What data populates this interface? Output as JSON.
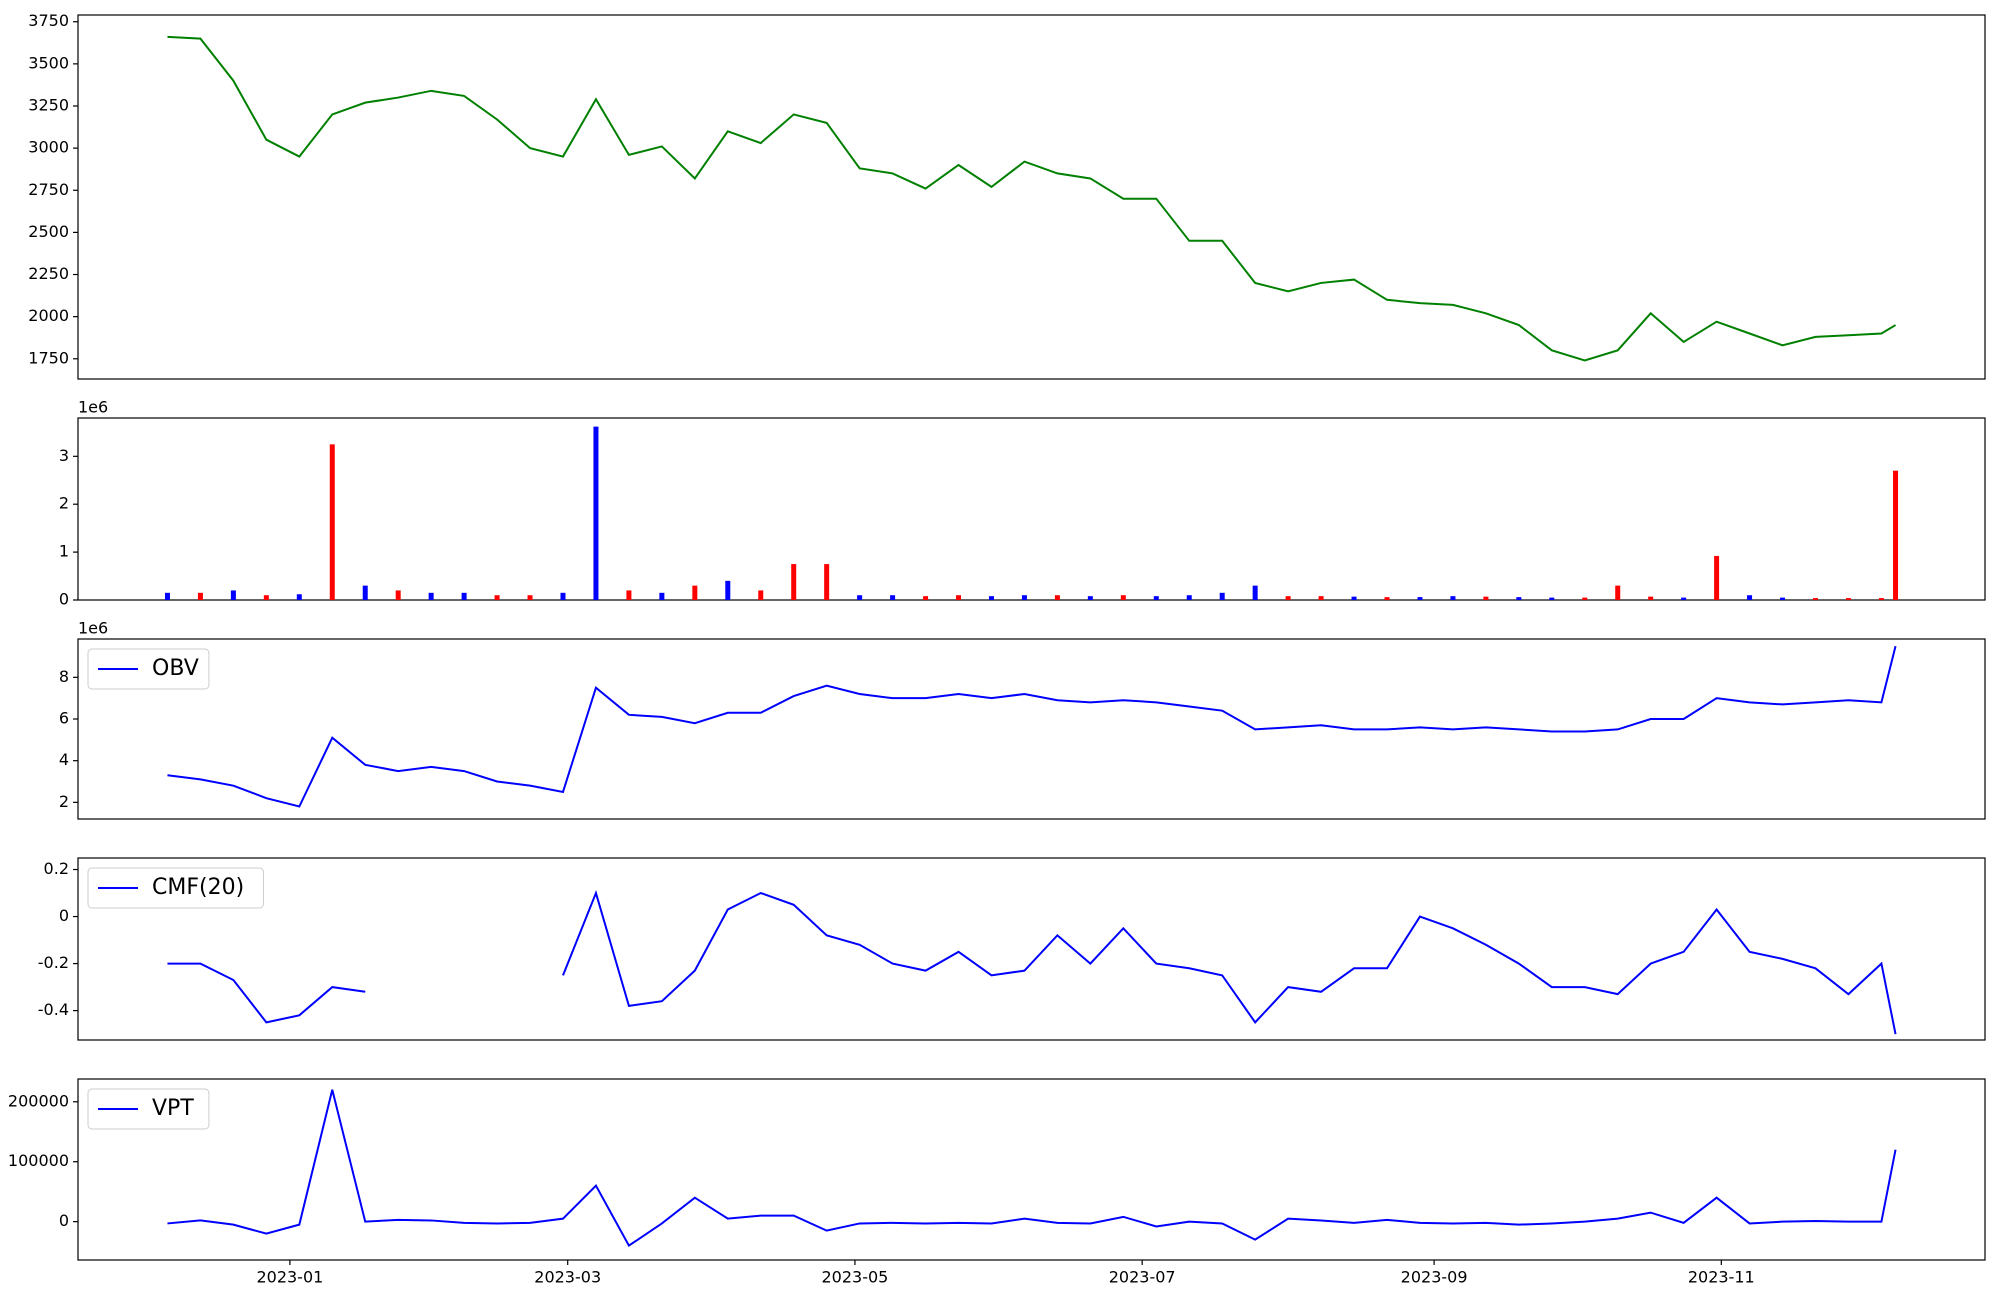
{
  "chart_data": [
    {
      "type": "line",
      "color": "#008000",
      "x": [
        "2022-12-06",
        "2022-12-13",
        "2022-12-20",
        "2022-12-27",
        "2023-01-03",
        "2023-01-10",
        "2023-01-17",
        "2023-01-24",
        "2023-01-31",
        "2023-02-07",
        "2023-02-14",
        "2023-02-21",
        "2023-02-28",
        "2023-03-07",
        "2023-03-14",
        "2023-03-21",
        "2023-03-28",
        "2023-04-04",
        "2023-04-11",
        "2023-04-18",
        "2023-04-25",
        "2023-05-02",
        "2023-05-09",
        "2023-05-16",
        "2023-05-23",
        "2023-05-30",
        "2023-06-06",
        "2023-06-13",
        "2023-06-20",
        "2023-06-27",
        "2023-07-04",
        "2023-07-11",
        "2023-07-18",
        "2023-07-25",
        "2023-08-01",
        "2023-08-08",
        "2023-08-15",
        "2023-08-22",
        "2023-08-29",
        "2023-09-05",
        "2023-09-12",
        "2023-09-19",
        "2023-09-26",
        "2023-10-03",
        "2023-10-10",
        "2023-10-17",
        "2023-10-24",
        "2023-10-31",
        "2023-11-07",
        "2023-11-14",
        "2023-11-21",
        "2023-11-28",
        "2023-12-05",
        "2023-12-08"
      ],
      "xlim": [
        "2022-11-17",
        "2023-12-27"
      ],
      "values": [
        3660,
        3650,
        3400,
        3050,
        2950,
        3200,
        3270,
        3300,
        3340,
        3310,
        3170,
        3000,
        2950,
        3290,
        2960,
        3010,
        2820,
        3100,
        3030,
        3200,
        3150,
        2880,
        2850,
        2760,
        2900,
        2770,
        2920,
        2850,
        2820,
        2700,
        2700,
        2450,
        2450,
        2200,
        2150,
        2200,
        2220,
        2100,
        2080,
        2070,
        2020,
        1950,
        1800,
        1740,
        1800,
        2020,
        1850,
        1970,
        1900,
        1830,
        1880,
        1890,
        1900,
        1950
      ],
      "ylim": [
        1630,
        3790
      ],
      "yticks": [
        1750,
        2000,
        2250,
        2500,
        2750,
        3000,
        3250,
        3500,
        3750
      ]
    },
    {
      "type": "bar",
      "y_scale_label": "1e6",
      "values": [
        0.15,
        0.15,
        0.2,
        0.1,
        0.12,
        3.25,
        0.3,
        0.2,
        0.15,
        0.15,
        0.1,
        0.1,
        0.15,
        3.62,
        0.2,
        0.15,
        0.3,
        0.4,
        0.2,
        0.75,
        0.75,
        0.1,
        0.1,
        0.08,
        0.1,
        0.08,
        0.1,
        0.1,
        0.08,
        0.1,
        0.08,
        0.1,
        0.15,
        0.3,
        0.08,
        0.08,
        0.07,
        0.06,
        0.06,
        0.08,
        0.07,
        0.06,
        0.05,
        0.05,
        0.3,
        0.07,
        0.05,
        0.92,
        0.1,
        0.05,
        0.04,
        0.04,
        0.04,
        2.7
      ],
      "colors": [
        "#0000ff",
        "#ff0000",
        "#0000ff",
        "#ff0000",
        "#0000ff",
        "#ff0000",
        "#0000ff",
        "#ff0000",
        "#0000ff",
        "#0000ff",
        "#ff0000",
        "#ff0000",
        "#0000ff",
        "#0000ff",
        "#ff0000",
        "#0000ff",
        "#ff0000",
        "#0000ff",
        "#ff0000",
        "#ff0000",
        "#ff0000",
        "#0000ff",
        "#0000ff",
        "#ff0000",
        "#ff0000",
        "#0000ff",
        "#0000ff",
        "#ff0000",
        "#0000ff",
        "#ff0000",
        "#0000ff",
        "#0000ff",
        "#0000ff",
        "#0000ff",
        "#ff0000",
        "#ff0000",
        "#0000ff",
        "#ff0000",
        "#0000ff",
        "#0000ff",
        "#ff0000",
        "#0000ff",
        "#0000ff",
        "#ff0000",
        "#ff0000",
        "#ff0000",
        "#0000ff",
        "#ff0000",
        "#0000ff",
        "#0000ff",
        "#ff0000",
        "#ff0000",
        "#ff0000",
        "#ff0000"
      ],
      "ylim": [
        0,
        3.8
      ],
      "yticks": [
        0,
        1,
        2,
        3
      ]
    },
    {
      "type": "line",
      "y_scale_label": "1e6",
      "legend": "upper left",
      "series": [
        {
          "name": "OBV",
          "color": "#0000ff",
          "values": [
            3.3,
            3.1,
            2.8,
            2.2,
            1.8,
            5.1,
            3.8,
            3.5,
            3.7,
            3.5,
            3.0,
            2.8,
            2.5,
            7.5,
            6.2,
            6.1,
            5.8,
            6.3,
            6.3,
            7.1,
            7.6,
            7.2,
            7.0,
            7.0,
            7.2,
            7.0,
            7.2,
            6.9,
            6.8,
            6.9,
            6.8,
            6.6,
            6.4,
            5.5,
            5.6,
            5.7,
            5.5,
            5.5,
            5.6,
            5.5,
            5.6,
            5.5,
            5.4,
            5.4,
            5.5,
            6.0,
            6.0,
            7.0,
            6.8,
            6.7,
            6.8,
            6.9,
            6.8,
            9.5
          ]
        }
      ],
      "ylim": [
        1.2,
        9.84
      ],
      "yticks": [
        2,
        4,
        6,
        8
      ]
    },
    {
      "type": "line",
      "legend": "upper left",
      "series": [
        {
          "name": "CMF(20)",
          "color": "#0000ff",
          "values": [
            -0.2,
            -0.2,
            -0.27,
            -0.45,
            -0.42,
            -0.3,
            -0.32,
            null,
            null,
            null,
            null,
            null,
            -0.25,
            0.1,
            -0.38,
            -0.36,
            -0.23,
            0.03,
            0.1,
            0.05,
            -0.08,
            -0.12,
            -0.2,
            -0.23,
            -0.15,
            -0.25,
            -0.23,
            -0.08,
            -0.2,
            -0.05,
            -0.2,
            -0.22,
            -0.25,
            -0.45,
            -0.3,
            -0.32,
            -0.22,
            -0.22,
            0.0,
            -0.05,
            -0.12,
            -0.2,
            -0.3,
            -0.3,
            -0.33,
            -0.2,
            -0.15,
            0.03,
            -0.15,
            -0.18,
            -0.22,
            -0.33,
            -0.2,
            -0.5
          ]
        }
      ],
      "ylim": [
        -0.525,
        0.249
      ],
      "yticks": [
        -0.4,
        -0.2,
        0.0,
        0.2
      ]
    },
    {
      "type": "line",
      "legend": "upper left",
      "series": [
        {
          "name": "VPT",
          "color": "#0000ff",
          "values": [
            -3000,
            2000,
            -5000,
            -20000,
            -5000,
            220000,
            0,
            3000,
            2000,
            -2000,
            -3000,
            -2000,
            5000,
            60000,
            -40000,
            -3000,
            40000,
            5000,
            10000,
            10000,
            -15000,
            -3000,
            -2000,
            -3000,
            -2000,
            -3000,
            5000,
            -2000,
            -3000,
            8000,
            -8000,
            0,
            -3000,
            -30000,
            5000,
            2000,
            -2000,
            3000,
            -2000,
            -3000,
            -2000,
            -5000,
            -3000,
            0,
            5000,
            15000,
            -2000,
            40000,
            -3000,
            0,
            1000,
            0,
            0,
            120000
          ]
        }
      ],
      "ylim": [
        -64000,
        238000
      ],
      "yticks": [
        0,
        100000,
        200000
      ],
      "xticks": [
        "2023-01",
        "2023-03",
        "2023-05",
        "2023-07",
        "2023-09",
        "2023-11"
      ]
    }
  ]
}
